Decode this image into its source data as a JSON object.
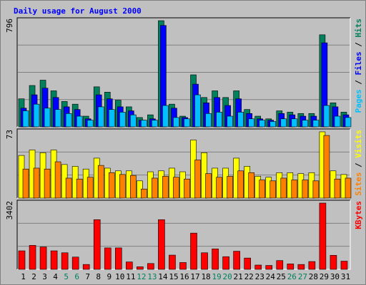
{
  "chart_data": {
    "type": "bar",
    "title": "Daily usage for August 2000",
    "colors": {
      "background": "#c0c0c0",
      "title": "#0000ff",
      "axis_text": "#000000",
      "weekend_label": "#00805c",
      "hits": "#00805c",
      "files": "#0000ff",
      "pages": "#00c0ff",
      "visits": "#ffff00",
      "sites": "#ff8000",
      "kbytes": "#ff0000"
    },
    "x": {
      "categories": [
        "1",
        "2",
        "3",
        "4",
        "5",
        "6",
        "7",
        "8",
        "9",
        "10",
        "11",
        "12",
        "13",
        "14",
        "15",
        "16",
        "17",
        "18",
        "19",
        "20",
        "21",
        "22",
        "23",
        "24",
        "25",
        "26",
        "27",
        "28",
        "29",
        "30",
        "31"
      ],
      "weekend_days": [
        "5",
        "6",
        "12",
        "13",
        "19",
        "20",
        "26",
        "27"
      ]
    },
    "panels": [
      {
        "name": "hits-files-pages",
        "max_label": "796",
        "ymax": 796,
        "grid": true,
        "side_label": [
          {
            "text": "Pages",
            "color": "#00c0ff"
          },
          {
            "text": " / ",
            "color": "#000000"
          },
          {
            "text": "Files",
            "color": "#0000ff"
          },
          {
            "text": " / ",
            "color": "#000000"
          },
          {
            "text": "Hits",
            "color": "#00805c"
          }
        ],
        "series": [
          {
            "name": "Hits",
            "color": "#00805c",
            "values": [
              210,
              310,
              350,
              270,
              190,
              170,
              80,
              300,
              260,
              200,
              150,
              70,
              90,
              796,
              170,
              80,
              390,
              220,
              270,
              220,
              270,
              130,
              80,
              60,
              120,
              110,
              100,
              100,
              690,
              180,
              110
            ]
          },
          {
            "name": "Files",
            "color": "#0000ff",
            "values": [
              140,
              240,
              290,
              220,
              150,
              130,
              60,
              240,
              210,
              150,
              120,
              50,
              60,
              760,
              140,
              70,
              320,
              180,
              220,
              160,
              210,
              100,
              60,
              50,
              100,
              90,
              80,
              80,
              630,
              150,
              90
            ]
          },
          {
            "name": "Pages",
            "color": "#00c0ff",
            "values": [
              120,
              170,
              140,
              130,
              100,
              80,
              50,
              150,
              130,
              110,
              90,
              50,
              50,
              160,
              70,
              60,
              240,
              100,
              110,
              80,
              110,
              60,
              50,
              40,
              60,
              60,
              50,
              50,
              160,
              80,
              70
            ]
          }
        ]
      },
      {
        "name": "visits-sites",
        "max_label": "73",
        "ymax": 73,
        "grid": true,
        "side_label": [
          {
            "text": "Sites",
            "color": "#ff8000"
          },
          {
            "text": " / ",
            "color": "#000000"
          },
          {
            "text": "Visits",
            "color": "#ffff00"
          }
        ],
        "series": [
          {
            "name": "Visits",
            "color": "#ffff00",
            "values": [
              47,
              53,
              50,
              53,
              37,
              35,
              32,
              44,
              33,
              30,
              30,
              19,
              29,
              30,
              33,
              29,
              64,
              50,
              33,
              33,
              44,
              35,
              24,
              23,
              28,
              28,
              27,
              28,
              73,
              30,
              26
            ]
          },
          {
            "name": "Sites",
            "color": "#ff8000",
            "values": [
              32,
              33,
              32,
              40,
              22,
              21,
              23,
              36,
              28,
              26,
              25,
              10,
              22,
              24,
              23,
              21,
              42,
              27,
              23,
              24,
              30,
              28,
              20,
              19,
              22,
              20,
              20,
              19,
              69,
              21,
              22
            ]
          }
        ]
      },
      {
        "name": "kbytes",
        "max_label": "3402",
        "ymax": 3402,
        "grid": true,
        "side_label": [
          {
            "text": "KBytes",
            "color": "#ff0000"
          }
        ],
        "series": [
          {
            "name": "KBytes",
            "color": "#ff0000",
            "values": [
              950,
              1230,
              1150,
              950,
              850,
              630,
              250,
              2550,
              1100,
              1100,
              380,
              130,
              300,
              2550,
              730,
              350,
              1860,
              850,
              1050,
              650,
              930,
              580,
              220,
              200,
              450,
              280,
              250,
              400,
              3402,
              720,
              420
            ]
          }
        ]
      }
    ]
  }
}
